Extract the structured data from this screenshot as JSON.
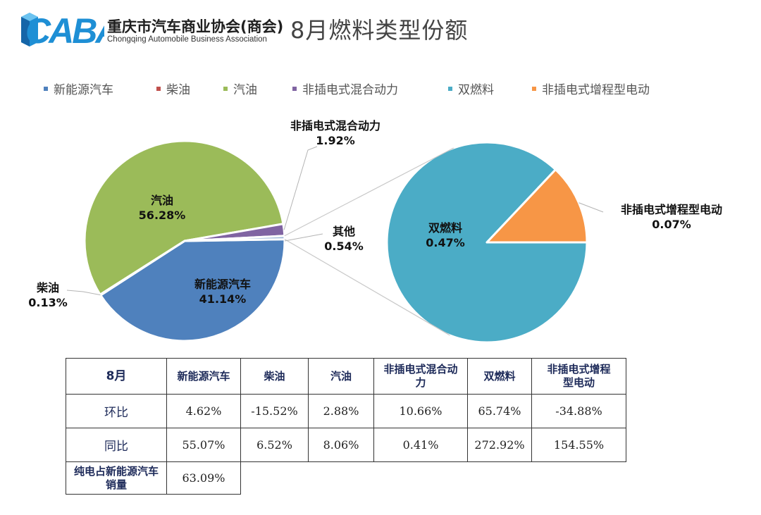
{
  "header": {
    "logo_text": "CABA",
    "org_name": "重庆市汽车商业协会(商会)",
    "org_name_en": "Chongqing Automobile Business Association",
    "title": "8月燃料类型份额"
  },
  "colors": {
    "nev": "#4f81bd",
    "diesel": "#c0504d",
    "gasoline": "#9bbb59",
    "phev": "#8064a2",
    "dual_fuel": "#4bacc6",
    "erev": "#f79646",
    "logo_blue": "#1e8fd5"
  },
  "chart_data": {
    "type": "pie",
    "subtype": "pie-of-pie",
    "legend": [
      "新能源汽车",
      "柴油",
      "汽油",
      "非插电式混合动力",
      "双燃料",
      "非插电式增程型电动"
    ],
    "legend_position": "top",
    "main_pie": [
      {
        "name": "新能源汽车",
        "label": "41.14%",
        "value": 41.14
      },
      {
        "name": "柴油",
        "label": "0.13%",
        "value": 0.13
      },
      {
        "name": "汽油",
        "label": "56.28%",
        "value": 56.28
      },
      {
        "name": "非插电式混合动力",
        "label": "1.92%",
        "value": 1.92
      },
      {
        "name": "其他",
        "label": "0.54%",
        "value": 0.54
      }
    ],
    "secondary_pie": [
      {
        "name": "双燃料",
        "label": "0.47%",
        "value": 0.47
      },
      {
        "name": "非插电式增程型电动",
        "label": "0.07%",
        "value": 0.07
      }
    ]
  },
  "table": {
    "headers": [
      "8月",
      "新能源汽车",
      "柴油",
      "汽油",
      "非插电式混合动力",
      "双燃料",
      "非插电式增程型电动"
    ],
    "rows": [
      {
        "label": "环比",
        "values": [
          "4.62%",
          "-15.52%",
          "2.88%",
          "10.66%",
          "65.74%",
          "-34.88%"
        ]
      },
      {
        "label": "同比",
        "values": [
          "55.07%",
          "6.52%",
          "8.06%",
          "0.41%",
          "272.92%",
          "154.55%"
        ]
      }
    ],
    "note": {
      "label": "纯电占新能源汽车销量",
      "value": "63.09%"
    }
  }
}
